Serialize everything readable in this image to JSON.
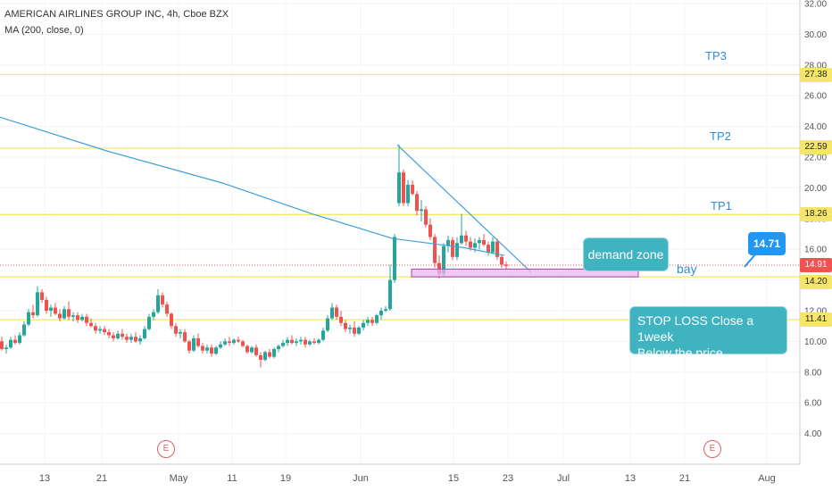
{
  "header": {
    "title": "AMERICAN AIRLINES GROUP INC, 4h, Cboe BZX",
    "indicator": "MA (200, close, 0)"
  },
  "colors": {
    "up": "#26a69a",
    "down": "#ef5350",
    "level_line": "#f5e56b",
    "annotation_teal": "#3fb3bf",
    "ma_line": "#3e9fd9",
    "zone_fill": "#e9b6f0",
    "zone_border": "#a244b3",
    "price_badge": "#2196f3"
  },
  "annotations": {
    "demand_zone": "demand zone",
    "stop_loss_line1": "STOP LOSS  Close a 1week",
    "stop_loss_line2": "Below the price",
    "bay": "bay",
    "price_callout": "14.71",
    "earnings_markers": [
      "E",
      "E"
    ]
  },
  "chart_data": {
    "type": "candlestick",
    "title": "AMERICAN AIRLINES GROUP INC, 4h, Cboe BZX",
    "x_tick_labels": [
      "13",
      "21",
      "May",
      "11",
      "19",
      "Jun",
      "15",
      "23",
      "Jul",
      "13",
      "21",
      "Aug"
    ],
    "y_tick_labels": [
      "4.00",
      "6.00",
      "8.00",
      "10.00",
      "12.00",
      "14.00",
      "16.00",
      "18.00",
      "20.00",
      "22.00",
      "24.00",
      "26.00",
      "28.00",
      "30.00",
      "32.00"
    ],
    "ylim": [
      2.0,
      32.0
    ],
    "levels": [
      {
        "label": "TP3",
        "value": 27.38
      },
      {
        "label": "TP2",
        "value": 22.59
      },
      {
        "label": "TP1",
        "value": 18.26
      },
      {
        "label": "",
        "value": 14.2
      },
      {
        "label": "",
        "value": 11.41
      }
    ],
    "current_price": 14.91,
    "demand_zone": [
      14.2,
      14.71
    ],
    "ma200": [
      [
        0,
        24.6
      ],
      [
        120,
        22.4
      ],
      [
        250,
        20.3
      ],
      [
        350,
        18.3
      ],
      [
        440,
        16.7
      ],
      [
        520,
        16.1
      ],
      [
        565,
        15.6
      ]
    ],
    "trendline": [
      [
        445,
        22.8
      ],
      [
        595,
        14.5
      ]
    ],
    "candles": [
      [
        0,
        10.0,
        10.3,
        9.4,
        9.5
      ],
      [
        5,
        9.5,
        9.8,
        9.2,
        9.6
      ],
      [
        10,
        9.6,
        10.3,
        9.5,
        10.1
      ],
      [
        15,
        10.1,
        10.4,
        9.8,
        9.9
      ],
      [
        20,
        9.9,
        10.6,
        9.8,
        10.4
      ],
      [
        25,
        10.4,
        11.3,
        10.3,
        11.1
      ],
      [
        30,
        11.1,
        12.1,
        11.0,
        11.9
      ],
      [
        35,
        11.9,
        12.4,
        11.5,
        11.7
      ],
      [
        40,
        11.7,
        13.6,
        11.6,
        13.2
      ],
      [
        45,
        13.2,
        13.4,
        12.5,
        12.7
      ],
      [
        50,
        12.7,
        12.9,
        11.8,
        12.0
      ],
      [
        55,
        12.0,
        12.4,
        11.6,
        12.2
      ],
      [
        60,
        12.2,
        12.5,
        11.7,
        11.8
      ],
      [
        65,
        11.8,
        12.1,
        11.3,
        11.5
      ],
      [
        70,
        11.5,
        12.3,
        11.4,
        12.1
      ],
      [
        75,
        12.1,
        12.6,
        11.4,
        11.6
      ],
      [
        80,
        11.6,
        11.9,
        11.3,
        11.7
      ],
      [
        85,
        11.7,
        11.9,
        11.2,
        11.4
      ],
      [
        90,
        11.4,
        11.8,
        11.3,
        11.6
      ],
      [
        95,
        11.6,
        11.8,
        11.0,
        11.2
      ],
      [
        100,
        11.2,
        11.5,
        10.9,
        11.0
      ],
      [
        105,
        11.0,
        11.2,
        10.5,
        10.7
      ],
      [
        110,
        10.7,
        11.0,
        10.5,
        10.8
      ],
      [
        115,
        10.8,
        11.0,
        10.4,
        10.6
      ],
      [
        120,
        10.6,
        10.8,
        10.2,
        10.4
      ],
      [
        125,
        10.4,
        10.6,
        10.0,
        10.2
      ],
      [
        130,
        10.2,
        10.7,
        10.1,
        10.5
      ],
      [
        135,
        10.5,
        10.8,
        10.1,
        10.3
      ],
      [
        140,
        10.3,
        10.5,
        9.9,
        10.1
      ],
      [
        145,
        10.1,
        10.5,
        9.9,
        10.3
      ],
      [
        150,
        10.3,
        10.6,
        9.9,
        10.0
      ],
      [
        155,
        10.0,
        10.4,
        9.8,
        10.2
      ],
      [
        160,
        10.2,
        11.0,
        10.1,
        10.8
      ],
      [
        165,
        10.8,
        11.8,
        10.7,
        11.6
      ],
      [
        170,
        11.6,
        12.1,
        11.4,
        11.9
      ],
      [
        175,
        11.9,
        13.4,
        11.8,
        13.0
      ],
      [
        180,
        13.0,
        13.2,
        12.2,
        12.4
      ],
      [
        185,
        12.4,
        12.6,
        11.6,
        11.8
      ],
      [
        190,
        11.8,
        11.9,
        10.8,
        11.0
      ],
      [
        195,
        11.0,
        11.2,
        10.3,
        10.5
      ],
      [
        200,
        10.5,
        10.8,
        10.2,
        10.6
      ],
      [
        205,
        10.6,
        10.8,
        9.9,
        10.0
      ],
      [
        210,
        10.0,
        10.1,
        9.2,
        9.4
      ],
      [
        215,
        9.4,
        10.4,
        9.3,
        10.2
      ],
      [
        220,
        10.2,
        10.5,
        9.6,
        9.7
      ],
      [
        225,
        9.7,
        9.9,
        9.2,
        9.4
      ],
      [
        230,
        9.4,
        9.8,
        9.2,
        9.6
      ],
      [
        235,
        9.6,
        9.8,
        9.0,
        9.2
      ],
      [
        240,
        9.2,
        9.7,
        9.1,
        9.6
      ],
      [
        245,
        9.6,
        10.0,
        9.5,
        9.8
      ],
      [
        250,
        9.8,
        10.2,
        9.7,
        10.0
      ],
      [
        255,
        10.0,
        10.3,
        9.7,
        9.9
      ],
      [
        260,
        9.9,
        10.2,
        9.8,
        10.1
      ],
      [
        265,
        10.1,
        10.3,
        9.9,
        10.0
      ],
      [
        270,
        10.0,
        10.1,
        9.6,
        9.7
      ],
      [
        275,
        9.7,
        9.8,
        9.2,
        9.3
      ],
      [
        280,
        9.3,
        9.7,
        9.2,
        9.6
      ],
      [
        285,
        9.6,
        9.8,
        9.0,
        9.1
      ],
      [
        290,
        9.1,
        9.3,
        8.3,
        8.8
      ],
      [
        295,
        8.8,
        9.4,
        8.7,
        9.3
      ],
      [
        300,
        9.3,
        9.5,
        8.9,
        9.0
      ],
      [
        305,
        9.0,
        9.6,
        8.9,
        9.5
      ],
      [
        310,
        9.5,
        9.8,
        9.3,
        9.7
      ],
      [
        315,
        9.7,
        10.1,
        9.6,
        9.9
      ],
      [
        320,
        9.9,
        10.3,
        9.7,
        10.1
      ],
      [
        325,
        10.1,
        10.4,
        9.8,
        9.9
      ],
      [
        330,
        9.9,
        10.2,
        9.7,
        10.0
      ],
      [
        335,
        10.0,
        10.3,
        9.8,
        10.1
      ],
      [
        340,
        10.1,
        10.3,
        9.6,
        9.8
      ],
      [
        345,
        9.8,
        10.1,
        9.7,
        10.0
      ],
      [
        350,
        10.0,
        10.2,
        9.8,
        9.9
      ],
      [
        355,
        9.9,
        10.2,
        9.8,
        10.1
      ],
      [
        360,
        10.1,
        10.9,
        10.0,
        10.7
      ],
      [
        365,
        10.7,
        11.7,
        10.6,
        11.5
      ],
      [
        370,
        11.5,
        12.5,
        11.4,
        12.2
      ],
      [
        375,
        12.2,
        12.4,
        11.4,
        11.6
      ],
      [
        380,
        11.6,
        12.0,
        11.0,
        11.2
      ],
      [
        385,
        11.2,
        11.4,
        10.6,
        10.8
      ],
      [
        390,
        10.8,
        11.1,
        10.5,
        10.9
      ],
      [
        395,
        10.9,
        11.3,
        10.3,
        10.5
      ],
      [
        400,
        10.5,
        11.0,
        10.4,
        10.9
      ],
      [
        405,
        10.9,
        11.4,
        10.7,
        11.2
      ],
      [
        410,
        11.2,
        11.6,
        11.0,
        11.4
      ],
      [
        415,
        11.4,
        11.6,
        11.0,
        11.2
      ],
      [
        420,
        11.2,
        11.8,
        11.1,
        11.7
      ],
      [
        425,
        11.7,
        12.2,
        11.4,
        12.0
      ],
      [
        430,
        12.0,
        12.3,
        11.9,
        12.1
      ],
      [
        435,
        12.1,
        15.0,
        12.0,
        14.0
      ],
      [
        440,
        14.0,
        17.0,
        13.8,
        16.8
      ],
      [
        445,
        19.0,
        22.8,
        18.8,
        21.0
      ],
      [
        450,
        21.0,
        21.2,
        18.8,
        19.0
      ],
      [
        455,
        19.0,
        20.5,
        18.8,
        20.2
      ],
      [
        460,
        20.2,
        20.5,
        19.5,
        19.6
      ],
      [
        465,
        19.6,
        19.8,
        18.2,
        18.5
      ],
      [
        470,
        18.5,
        19.2,
        17.8,
        18.6
      ],
      [
        475,
        18.6,
        18.8,
        17.4,
        17.6
      ],
      [
        480,
        17.6,
        18.0,
        16.6,
        16.8
      ],
      [
        485,
        16.8,
        17.0,
        14.8,
        15.1
      ],
      [
        490,
        15.1,
        15.6,
        14.1,
        14.4
      ],
      [
        495,
        14.4,
        16.4,
        14.2,
        16.2
      ],
      [
        500,
        16.2,
        16.9,
        15.8,
        16.6
      ],
      [
        505,
        16.6,
        16.8,
        15.3,
        15.5
      ],
      [
        510,
        15.5,
        16.8,
        15.3,
        16.4
      ],
      [
        515,
        16.4,
        18.3,
        16.3,
        16.9
      ],
      [
        520,
        16.9,
        17.2,
        16.2,
        16.5
      ],
      [
        525,
        16.5,
        16.8,
        15.9,
        16.1
      ],
      [
        530,
        16.1,
        16.7,
        15.8,
        16.4
      ],
      [
        535,
        16.4,
        16.8,
        16.0,
        16.6
      ],
      [
        540,
        16.6,
        17.0,
        16.2,
        16.3
      ],
      [
        545,
        16.3,
        16.5,
        15.6,
        15.8
      ],
      [
        550,
        15.8,
        16.8,
        15.7,
        16.5
      ],
      [
        555,
        16.5,
        16.7,
        15.3,
        15.5
      ],
      [
        560,
        15.5,
        15.6,
        14.8,
        15.0
      ],
      [
        565,
        15.0,
        15.2,
        14.7,
        14.91
      ]
    ]
  }
}
